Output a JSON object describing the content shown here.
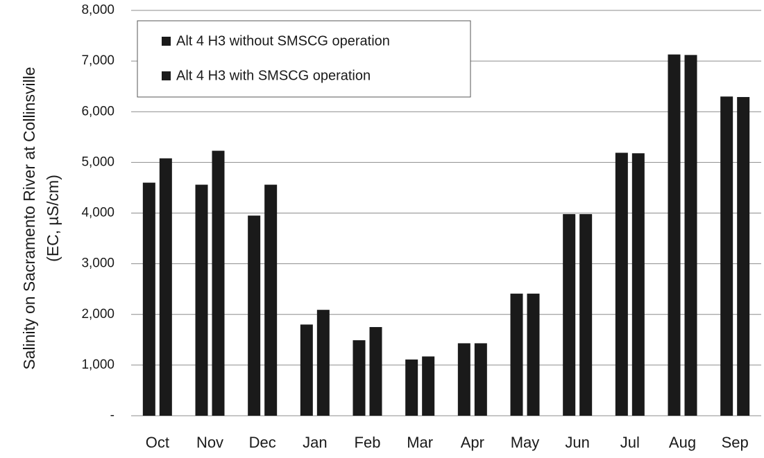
{
  "chart_data": {
    "type": "bar",
    "ylabel": [
      "Salinity on Sacramento River at Collinsville",
      "(EC, µS/cm)"
    ],
    "categories": [
      "Oct",
      "Nov",
      "Dec",
      "Jan",
      "Feb",
      "Mar",
      "Apr",
      "May",
      "Jun",
      "Jul",
      "Aug",
      "Sep"
    ],
    "series": [
      {
        "name": "Alt 4 H3 without SMSCG operation",
        "color": "#1a1a1a",
        "values": [
          4600,
          4560,
          3950,
          1800,
          1490,
          1110,
          1430,
          2410,
          3980,
          5190,
          7130,
          6300
        ]
      },
      {
        "name": "Alt 4 H3 with SMSCG operation",
        "color": "#1a1a1a",
        "values": [
          5080,
          5230,
          4560,
          2090,
          1750,
          1170,
          1430,
          2410,
          3980,
          5180,
          7120,
          6290
        ]
      }
    ],
    "ylim": [
      0,
      8000
    ],
    "yticks": [
      {
        "value": 0,
        "label": "-"
      },
      {
        "value": 1000,
        "label": "1,000"
      },
      {
        "value": 2000,
        "label": "2,000"
      },
      {
        "value": 3000,
        "label": "3,000"
      },
      {
        "value": 4000,
        "label": "4,000"
      },
      {
        "value": 5000,
        "label": "5,000"
      },
      {
        "value": 6000,
        "label": "6,000"
      },
      {
        "value": 7000,
        "label": "7,000"
      },
      {
        "value": 8000,
        "label": "8,000"
      }
    ],
    "grid": true,
    "legend": "upper left"
  }
}
